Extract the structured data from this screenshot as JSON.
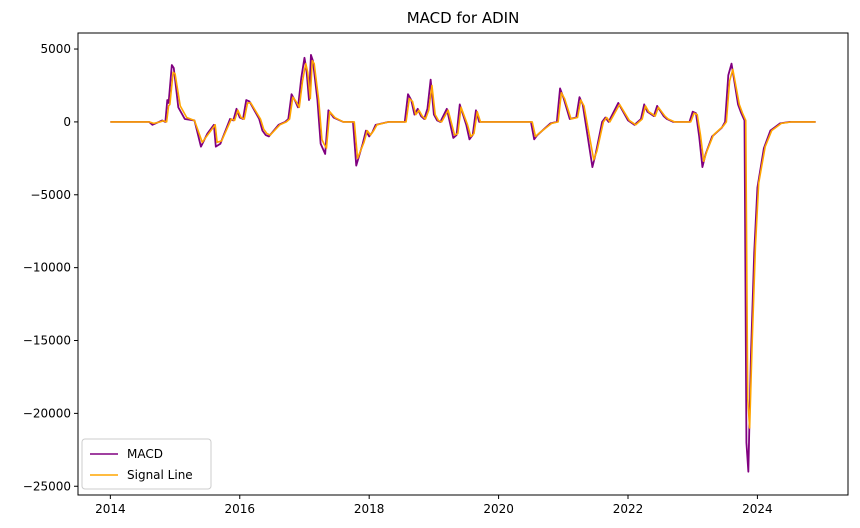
{
  "chart_data": {
    "type": "line",
    "title": "MACD for ADIN",
    "xlabel": "",
    "ylabel": "",
    "xlim": [
      2013.5,
      2025.4
    ],
    "ylim": [
      -25600,
      6100
    ],
    "x_ticks": [
      2014,
      2016,
      2018,
      2020,
      2022,
      2024
    ],
    "x_tick_labels": [
      "2014",
      "2016",
      "2018",
      "2020",
      "2022",
      "2024"
    ],
    "y_ticks": [
      5000,
      0,
      -5000,
      -10000,
      -15000,
      -20000,
      -25000
    ],
    "y_tick_labels": [
      "5000",
      "0",
      "−5000",
      "−10000",
      "−15000",
      "−20000",
      "−25000"
    ],
    "grid": false,
    "legend": {
      "placement": "lower-left"
    },
    "series": [
      {
        "name": "MACD",
        "color": "#800080",
        "points": [
          [
            2014.0,
            0
          ],
          [
            2014.4,
            0
          ],
          [
            2014.6,
            0
          ],
          [
            2014.65,
            -200
          ],
          [
            2014.75,
            0
          ],
          [
            2014.8,
            100
          ],
          [
            2014.85,
            0
          ],
          [
            2014.88,
            1500
          ],
          [
            2014.9,
            1300
          ],
          [
            2014.95,
            3900
          ],
          [
            2014.98,
            3700
          ],
          [
            2015.05,
            1000
          ],
          [
            2015.15,
            200
          ],
          [
            2015.3,
            100
          ],
          [
            2015.4,
            -1700
          ],
          [
            2015.5,
            -800
          ],
          [
            2015.6,
            -200
          ],
          [
            2015.63,
            -1700
          ],
          [
            2015.7,
            -1500
          ],
          [
            2015.85,
            200
          ],
          [
            2015.9,
            100
          ],
          [
            2015.95,
            900
          ],
          [
            2016.0,
            300
          ],
          [
            2016.05,
            200
          ],
          [
            2016.1,
            1500
          ],
          [
            2016.15,
            1400
          ],
          [
            2016.3,
            200
          ],
          [
            2016.35,
            -600
          ],
          [
            2016.4,
            -900
          ],
          [
            2016.45,
            -1000
          ],
          [
            2016.6,
            -200
          ],
          [
            2016.7,
            0
          ],
          [
            2016.75,
            200
          ],
          [
            2016.8,
            1900
          ],
          [
            2016.85,
            1500
          ],
          [
            2016.9,
            1000
          ],
          [
            2016.95,
            3000
          ],
          [
            2017.0,
            4400
          ],
          [
            2017.03,
            3600
          ],
          [
            2017.07,
            1500
          ],
          [
            2017.1,
            4600
          ],
          [
            2017.13,
            4200
          ],
          [
            2017.2,
            1500
          ],
          [
            2017.25,
            -1500
          ],
          [
            2017.28,
            -1800
          ],
          [
            2017.32,
            -2200
          ],
          [
            2017.37,
            800
          ],
          [
            2017.45,
            300
          ],
          [
            2017.6,
            0
          ],
          [
            2017.75,
            0
          ],
          [
            2017.8,
            -3000
          ],
          [
            2017.9,
            -1500
          ],
          [
            2017.95,
            -600
          ],
          [
            2018.0,
            -1000
          ],
          [
            2018.05,
            -700
          ],
          [
            2018.1,
            -200
          ],
          [
            2018.3,
            0
          ],
          [
            2018.55,
            0
          ],
          [
            2018.6,
            1900
          ],
          [
            2018.65,
            1500
          ],
          [
            2018.7,
            500
          ],
          [
            2018.75,
            900
          ],
          [
            2018.8,
            400
          ],
          [
            2018.85,
            200
          ],
          [
            2018.9,
            900
          ],
          [
            2018.95,
            2900
          ],
          [
            2019.0,
            500
          ],
          [
            2019.05,
            100
          ],
          [
            2019.1,
            0
          ],
          [
            2019.2,
            900
          ],
          [
            2019.3,
            -1100
          ],
          [
            2019.35,
            -900
          ],
          [
            2019.4,
            1200
          ],
          [
            2019.5,
            -200
          ],
          [
            2019.55,
            -1200
          ],
          [
            2019.6,
            -900
          ],
          [
            2019.65,
            800
          ],
          [
            2019.7,
            0
          ],
          [
            2020.5,
            0
          ],
          [
            2020.55,
            -1200
          ],
          [
            2020.6,
            -900
          ],
          [
            2020.8,
            -100
          ],
          [
            2020.9,
            0
          ],
          [
            2020.95,
            2300
          ],
          [
            2021.0,
            1700
          ],
          [
            2021.1,
            200
          ],
          [
            2021.2,
            300
          ],
          [
            2021.25,
            1700
          ],
          [
            2021.3,
            1200
          ],
          [
            2021.45,
            -3100
          ],
          [
            2021.5,
            -2200
          ],
          [
            2021.6,
            0
          ],
          [
            2021.65,
            300
          ],
          [
            2021.7,
            0
          ],
          [
            2021.85,
            1300
          ],
          [
            2022.0,
            100
          ],
          [
            2022.1,
            -200
          ],
          [
            2022.2,
            200
          ],
          [
            2022.25,
            1200
          ],
          [
            2022.3,
            700
          ],
          [
            2022.4,
            400
          ],
          [
            2022.45,
            1100
          ],
          [
            2022.55,
            400
          ],
          [
            2022.6,
            200
          ],
          [
            2022.7,
            0
          ],
          [
            2022.95,
            0
          ],
          [
            2023.0,
            700
          ],
          [
            2023.05,
            600
          ],
          [
            2023.1,
            -1000
          ],
          [
            2023.15,
            -3100
          ],
          [
            2023.2,
            -2200
          ],
          [
            2023.3,
            -1000
          ],
          [
            2023.45,
            -400
          ],
          [
            2023.5,
            0
          ],
          [
            2023.55,
            3200
          ],
          [
            2023.6,
            4000
          ],
          [
            2023.65,
            2600
          ],
          [
            2023.7,
            1200
          ],
          [
            2023.75,
            600
          ],
          [
            2023.8,
            100
          ],
          [
            2023.83,
            -22000
          ],
          [
            2023.86,
            -24000
          ],
          [
            2023.9,
            -16000
          ],
          [
            2023.95,
            -9000
          ],
          [
            2024.0,
            -4500
          ],
          [
            2024.1,
            -1800
          ],
          [
            2024.2,
            -600
          ],
          [
            2024.35,
            -100
          ],
          [
            2024.5,
            0
          ],
          [
            2024.9,
            0
          ]
        ]
      },
      {
        "name": "Signal Line",
        "color": "#ffa500",
        "points": [
          [
            2014.0,
            0
          ],
          [
            2014.4,
            0
          ],
          [
            2014.6,
            0
          ],
          [
            2014.67,
            -100
          ],
          [
            2014.77,
            0
          ],
          [
            2014.82,
            80
          ],
          [
            2014.87,
            0
          ],
          [
            2014.9,
            1100
          ],
          [
            2014.92,
            1200
          ],
          [
            2014.97,
            3400
          ],
          [
            2015.0,
            3300
          ],
          [
            2015.08,
            1100
          ],
          [
            2015.18,
            300
          ],
          [
            2015.3,
            100
          ],
          [
            2015.42,
            -1400
          ],
          [
            2015.52,
            -800
          ],
          [
            2015.62,
            -200
          ],
          [
            2015.65,
            -1400
          ],
          [
            2015.72,
            -1300
          ],
          [
            2015.87,
            200
          ],
          [
            2015.92,
            100
          ],
          [
            2015.97,
            800
          ],
          [
            2016.02,
            300
          ],
          [
            2016.07,
            200
          ],
          [
            2016.12,
            1300
          ],
          [
            2016.17,
            1300
          ],
          [
            2016.32,
            200
          ],
          [
            2016.37,
            -500
          ],
          [
            2016.42,
            -800
          ],
          [
            2016.47,
            -900
          ],
          [
            2016.62,
            -200
          ],
          [
            2016.72,
            0
          ],
          [
            2016.77,
            200
          ],
          [
            2016.82,
            1700
          ],
          [
            2016.87,
            1400
          ],
          [
            2016.92,
            1000
          ],
          [
            2016.97,
            2800
          ],
          [
            2017.02,
            4000
          ],
          [
            2017.05,
            3400
          ],
          [
            2017.09,
            1600
          ],
          [
            2017.12,
            4200
          ],
          [
            2017.15,
            4000
          ],
          [
            2017.22,
            1500
          ],
          [
            2017.27,
            -1200
          ],
          [
            2017.3,
            -1500
          ],
          [
            2017.34,
            -1800
          ],
          [
            2017.39,
            700
          ],
          [
            2017.47,
            300
          ],
          [
            2017.6,
            0
          ],
          [
            2017.77,
            0
          ],
          [
            2017.82,
            -2500
          ],
          [
            2017.92,
            -1400
          ],
          [
            2017.97,
            -600
          ],
          [
            2018.02,
            -900
          ],
          [
            2018.07,
            -600
          ],
          [
            2018.12,
            -200
          ],
          [
            2018.3,
            0
          ],
          [
            2018.57,
            0
          ],
          [
            2018.62,
            1600
          ],
          [
            2018.67,
            1400
          ],
          [
            2018.72,
            500
          ],
          [
            2018.77,
            800
          ],
          [
            2018.82,
            400
          ],
          [
            2018.87,
            200
          ],
          [
            2018.92,
            800
          ],
          [
            2018.97,
            2500
          ],
          [
            2019.02,
            500
          ],
          [
            2019.07,
            100
          ],
          [
            2019.12,
            0
          ],
          [
            2019.22,
            800
          ],
          [
            2019.32,
            -900
          ],
          [
            2019.37,
            -800
          ],
          [
            2019.42,
            1000
          ],
          [
            2019.52,
            -200
          ],
          [
            2019.57,
            -1000
          ],
          [
            2019.62,
            -800
          ],
          [
            2019.67,
            700
          ],
          [
            2019.72,
            0
          ],
          [
            2020.52,
            0
          ],
          [
            2020.57,
            -1000
          ],
          [
            2020.62,
            -800
          ],
          [
            2020.82,
            -100
          ],
          [
            2020.92,
            0
          ],
          [
            2020.97,
            2000
          ],
          [
            2021.02,
            1600
          ],
          [
            2021.12,
            200
          ],
          [
            2021.22,
            300
          ],
          [
            2021.27,
            1500
          ],
          [
            2021.32,
            1100
          ],
          [
            2021.47,
            -2600
          ],
          [
            2021.52,
            -2000
          ],
          [
            2021.62,
            0
          ],
          [
            2021.67,
            300
          ],
          [
            2021.72,
            0
          ],
          [
            2021.87,
            1200
          ],
          [
            2022.02,
            100
          ],
          [
            2022.12,
            -200
          ],
          [
            2022.22,
            200
          ],
          [
            2022.27,
            1100
          ],
          [
            2022.32,
            700
          ],
          [
            2022.42,
            400
          ],
          [
            2022.47,
            1000
          ],
          [
            2022.57,
            400
          ],
          [
            2022.62,
            200
          ],
          [
            2022.72,
            0
          ],
          [
            2022.97,
            0
          ],
          [
            2023.02,
            600
          ],
          [
            2023.07,
            500
          ],
          [
            2023.12,
            -900
          ],
          [
            2023.17,
            -2700
          ],
          [
            2023.22,
            -2000
          ],
          [
            2023.32,
            -900
          ],
          [
            2023.47,
            -300
          ],
          [
            2023.52,
            0
          ],
          [
            2023.57,
            2800
          ],
          [
            2023.62,
            3600
          ],
          [
            2023.67,
            2400
          ],
          [
            2023.72,
            1200
          ],
          [
            2023.77,
            600
          ],
          [
            2023.82,
            100
          ],
          [
            2023.85,
            -19000
          ],
          [
            2023.88,
            -21000
          ],
          [
            2023.92,
            -15000
          ],
          [
            2023.97,
            -8500
          ],
          [
            2024.02,
            -4200
          ],
          [
            2024.12,
            -1700
          ],
          [
            2024.22,
            -600
          ],
          [
            2024.37,
            -100
          ],
          [
            2024.52,
            0
          ],
          [
            2024.9,
            0
          ]
        ]
      }
    ]
  }
}
